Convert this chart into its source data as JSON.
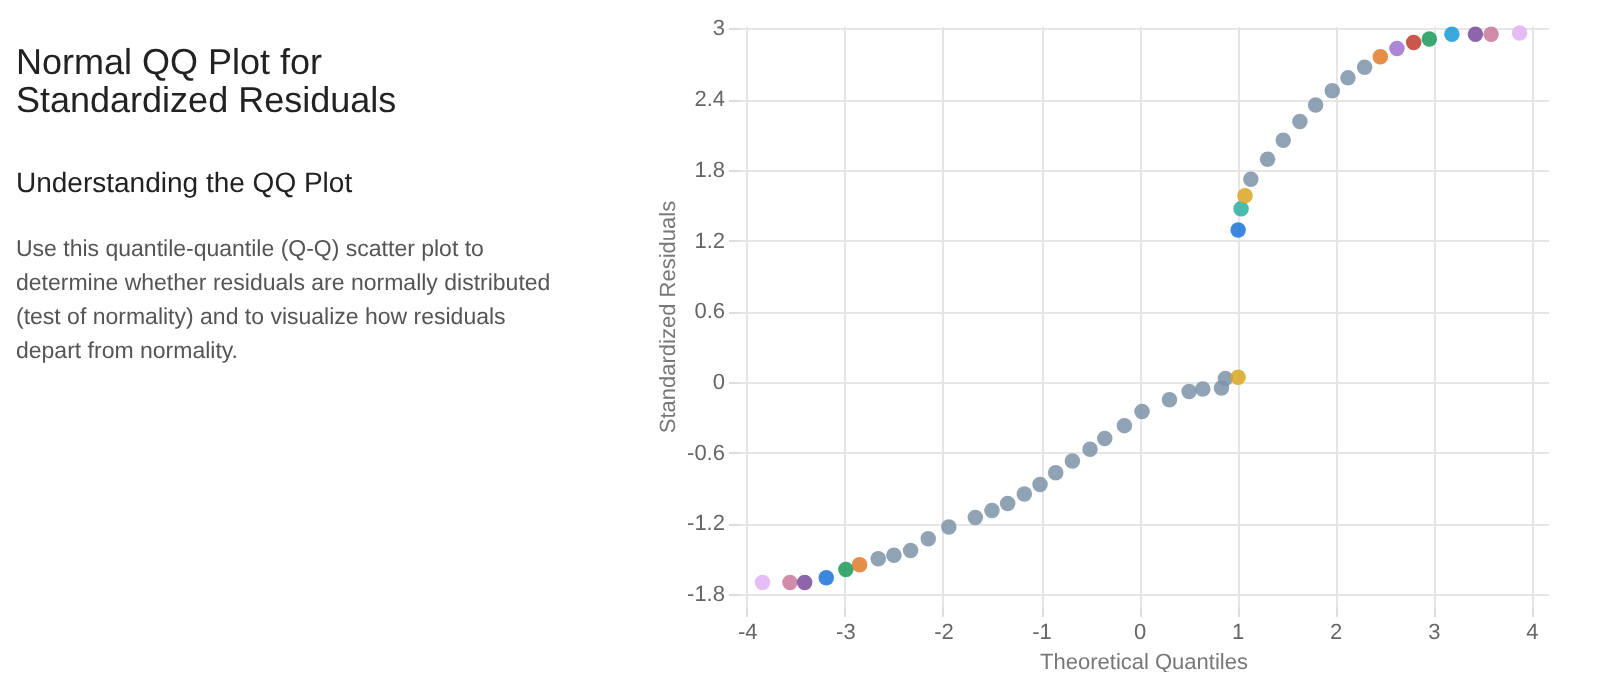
{
  "chart_data": {
    "type": "scatter",
    "title": "Normal QQ Plot for Standardized Residuals",
    "subtitle": "Understanding the QQ Plot",
    "annotations": [
      "Use this quantile-quantile (Q-Q) scatter plot to determine whether residuals are normally distributed (test of normality) and to visualize how residuals depart from normality."
    ],
    "xlabel": "Theoretical Quantiles",
    "ylabel": "Standardized Residuals",
    "x": [
      -3.84,
      -3.56,
      -3.41,
      -3.19,
      -2.99,
      -2.85,
      -2.66,
      -2.5,
      -2.33,
      -2.15,
      -1.94,
      -1.67,
      -1.5,
      -1.34,
      -1.17,
      -1.01,
      -0.85,
      -0.68,
      -0.5,
      -0.35,
      -0.15,
      0.03,
      0.31,
      0.51,
      0.65,
      0.84,
      0.88,
      1.01,
      1.01,
      1.04,
      1.08,
      1.14,
      1.31,
      1.47,
      1.64,
      1.8,
      1.97,
      2.13,
      2.3,
      2.46,
      2.63,
      2.8,
      2.96,
      3.19,
      3.43,
      3.59,
      3.88
    ],
    "values": [
      -1.7,
      -1.7,
      -1.7,
      -1.66,
      -1.59,
      -1.55,
      -1.5,
      -1.47,
      -1.43,
      -1.33,
      -1.23,
      -1.15,
      -1.09,
      -1.03,
      -0.95,
      -0.87,
      -0.77,
      -0.67,
      -0.57,
      -0.48,
      -0.37,
      -0.25,
      -0.15,
      -0.08,
      -0.06,
      -0.05,
      0.03,
      0.04,
      1.29,
      1.47,
      1.58,
      1.72,
      1.89,
      2.05,
      2.21,
      2.35,
      2.47,
      2.58,
      2.67,
      2.76,
      2.83,
      2.88,
      2.91,
      2.95,
      2.95,
      2.95,
      2.96
    ],
    "colors": [
      "#e0b0f5",
      "#c9789a",
      "#7a4a9a",
      "#1a73d8",
      "#1a9a5a",
      "#e07a2a",
      "#7b93a8",
      "#7b93a8",
      "#7b93a8",
      "#7b93a8",
      "#7b93a8",
      "#7b93a8",
      "#7b93a8",
      "#7b93a8",
      "#7b93a8",
      "#7b93a8",
      "#7b93a8",
      "#7b93a8",
      "#7b93a8",
      "#7b93a8",
      "#7b93a8",
      "#7b93a8",
      "#7b93a8",
      "#7b93a8",
      "#7b93a8",
      "#7b93a8",
      "#7b93a8",
      "#d9a520",
      "#1a73d8",
      "#2ab0a0",
      "#d9a520",
      "#7b93a8",
      "#7b93a8",
      "#7b93a8",
      "#7b93a8",
      "#7b93a8",
      "#7b93a8",
      "#7b93a8",
      "#7b93a8",
      "#e07a2a",
      "#a070d0",
      "#c0392b",
      "#1a9a5a",
      "#1a9ad8",
      "#7a4a9a",
      "#c9789a",
      "#e0b0f5"
    ],
    "xlim": [
      -4.09,
      4.17
    ],
    "ylim": [
      -1.9,
      3.02
    ],
    "xticks": [
      -4,
      -3,
      -2,
      -1,
      0,
      1,
      2,
      3,
      4
    ],
    "yticks": [
      -1.8,
      -1.2,
      -0.6,
      0,
      0.6,
      1.2,
      1.8,
      2.4,
      3
    ],
    "grid": true
  }
}
